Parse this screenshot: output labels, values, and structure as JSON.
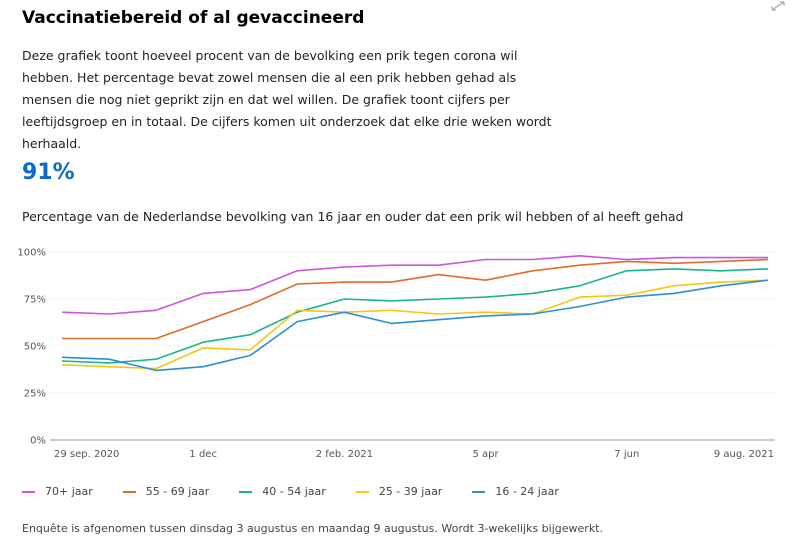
{
  "header": {
    "title": "Vaccinatiebereid of al gevaccineerd",
    "intro": "Deze grafiek toont hoeveel procent van de bevolking een prik tegen corona wil hebben. Het percentage bevat zowel mensen die al een prik hebben gehad als mensen die nog niet geprikt zijn en dat wel willen. De grafiek toont cijfers per leeftijdsgroep en in totaal. De cijfers komen uit onderzoek dat elke drie weken wordt herhaald.",
    "big_number": "91%"
  },
  "footnote": "Enquête is afgenomen tussen dinsdag 3 augustus en maandag 9 augustus. Wordt 3-wekelijks bijgewerkt.",
  "chart_data": {
    "type": "line",
    "title": "Percentage van de Nederlandse bevolking van 16 jaar en ouder dat een prik wil hebben of al heeft gehad",
    "xlabel": "",
    "ylabel": "",
    "ylim": [
      0,
      100
    ],
    "y_ticks": [
      "0%",
      "25%",
      "50%",
      "75%",
      "100%"
    ],
    "y_tick_values": [
      0,
      25,
      50,
      75,
      100
    ],
    "x_tick_labels": [
      "29 sep. 2020",
      "1 dec",
      "2 feb. 2021",
      "5 apr",
      "7 jun",
      "9 aug. 2021"
    ],
    "x_tick_index": [
      0,
      3,
      6,
      9,
      12,
      15
    ],
    "x_count": 16,
    "grid": true,
    "legend_position": "bottom",
    "series": [
      {
        "name": "70+ jaar",
        "color": "#cc55dd",
        "values": [
          68,
          67,
          69,
          78,
          80,
          90,
          92,
          93,
          93,
          96,
          96,
          98,
          96,
          97,
          97,
          97
        ]
      },
      {
        "name": "55 - 69 jaar",
        "color": "#e06c28",
        "values": [
          54,
          54,
          54,
          63,
          72,
          83,
          84,
          84,
          88,
          85,
          90,
          93,
          95,
          94,
          95,
          96
        ]
      },
      {
        "name": "40 - 54 jaar",
        "color": "#1ab394",
        "values": [
          42,
          41,
          43,
          52,
          56,
          68,
          75,
          74,
          75,
          76,
          78,
          82,
          90,
          91,
          90,
          91
        ]
      },
      {
        "name": "25 - 39 jaar",
        "color": "#f5c518",
        "values": [
          40,
          39,
          38,
          49,
          48,
          69,
          68,
          69,
          67,
          68,
          67,
          76,
          77,
          82,
          84,
          85
        ]
      },
      {
        "name": "16 - 24 jaar",
        "color": "#2a8fd8",
        "values": [
          44,
          43,
          37,
          39,
          45,
          63,
          68,
          62,
          64,
          66,
          67,
          71,
          76,
          78,
          82,
          85
        ]
      }
    ]
  }
}
